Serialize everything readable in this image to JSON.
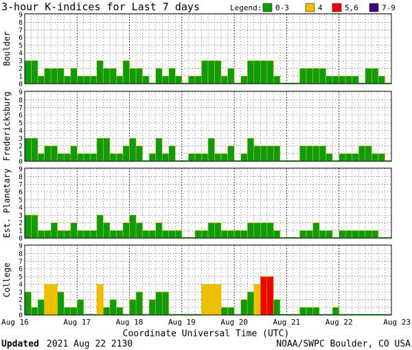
{
  "chart_data": {
    "type": "bar",
    "title": "3-hour K-indices for Last 7 days",
    "legend": {
      "label": "Legend:",
      "placement": "top-right",
      "entries": [
        {
          "label": "0-3",
          "color": "#109a10"
        },
        {
          "label": "4",
          "color": "#f0c000"
        },
        {
          "label": "5,6",
          "color": "#f00000"
        },
        {
          "label": "7-9",
          "color": "#400080"
        }
      ]
    },
    "ylim": [
      0,
      9
    ],
    "yticks": [
      "0",
      "1",
      "2",
      "3",
      "4",
      "5",
      "6",
      "7",
      "8",
      "9"
    ],
    "xlabel": "Coordinate Universal Time (UTC)",
    "xticks": [
      "Aug 16",
      "Aug 17",
      "Aug 18",
      "Aug 19",
      "Aug 20",
      "Aug 21",
      "Aug 22",
      "Aug 23"
    ],
    "intervals_per_day": 8,
    "series": [
      {
        "name": "Boulder",
        "values": [
          3,
          3,
          1,
          2,
          2,
          2,
          1,
          2,
          1,
          1,
          1,
          3,
          2,
          2,
          1,
          3,
          2,
          2,
          1,
          0,
          2,
          1,
          2,
          1,
          0,
          1,
          1,
          3,
          3,
          3,
          1,
          2,
          0,
          1,
          3,
          3,
          3,
          3,
          1,
          0,
          0,
          0,
          2,
          2,
          2,
          2,
          1,
          1,
          1,
          1,
          1,
          0,
          2,
          2,
          1,
          0
        ]
      },
      {
        "name": "Fredericksburg",
        "values": [
          3,
          3,
          1,
          2,
          2,
          1,
          1,
          2,
          1,
          1,
          1,
          3,
          3,
          1,
          1,
          2,
          3,
          2,
          0,
          1,
          3,
          1,
          2,
          0,
          0,
          1,
          1,
          1,
          3,
          1,
          1,
          2,
          0,
          1,
          3,
          2,
          2,
          2,
          2,
          0,
          0,
          0,
          2,
          2,
          2,
          2,
          1,
          0,
          1,
          1,
          1,
          2,
          2,
          1,
          1,
          0
        ]
      },
      {
        "name": "Est. Planetary",
        "values": [
          3,
          3,
          1,
          1,
          2,
          1,
          1,
          2,
          1,
          1,
          1,
          3,
          2,
          1,
          1,
          2,
          3,
          2,
          1,
          1,
          2,
          1,
          1,
          1,
          0,
          0,
          1,
          1,
          2,
          2,
          1,
          1,
          1,
          1,
          2,
          2,
          2,
          2,
          1,
          0,
          0,
          0,
          1,
          1,
          2,
          1,
          1,
          0,
          1,
          1,
          1,
          1,
          1,
          1,
          0,
          0
        ]
      },
      {
        "name": "College",
        "values": [
          3,
          1,
          2,
          4,
          4,
          3,
          1,
          1,
          2,
          0,
          0,
          4,
          1,
          2,
          1,
          0,
          2,
          3,
          0,
          2,
          3,
          3,
          0,
          0,
          0,
          0,
          0,
          4,
          4,
          4,
          1,
          1,
          0,
          2,
          3,
          4,
          5,
          5,
          2,
          0,
          0,
          0,
          1,
          1,
          1,
          0,
          0,
          1,
          0,
          0,
          0,
          0,
          0,
          0,
          0,
          0
        ]
      }
    ]
  },
  "footer": {
    "updated_label": "Updated",
    "updated_value": "2021 Aug 22 2130",
    "source": "NOAA/SWPC Boulder, CO USA"
  }
}
